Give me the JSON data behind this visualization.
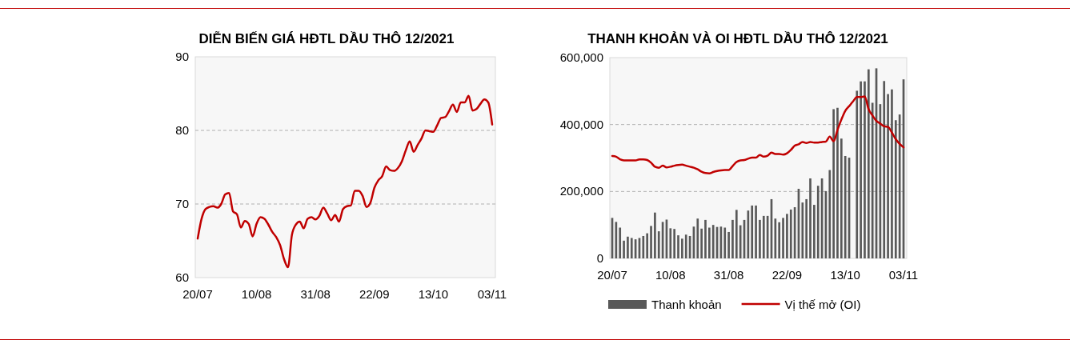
{
  "chart_data": [
    {
      "type": "line",
      "title": "DIỄN BIẾN GIÁ HĐTL DẦU THÔ 12/2021",
      "categories": [
        "20/07",
        null,
        null,
        null,
        null,
        null,
        null,
        null,
        null,
        null,
        null,
        null,
        null,
        null,
        null,
        "10/08",
        null,
        null,
        null,
        null,
        null,
        null,
        null,
        null,
        null,
        null,
        null,
        null,
        null,
        null,
        "31/08",
        null,
        null,
        null,
        null,
        null,
        null,
        null,
        null,
        null,
        null,
        null,
        null,
        null,
        null,
        "22/09",
        null,
        null,
        null,
        null,
        null,
        null,
        null,
        null,
        null,
        null,
        null,
        null,
        null,
        null,
        "13/10",
        null,
        null,
        null,
        null,
        null,
        null,
        null,
        null,
        null,
        null,
        null,
        null,
        null,
        null,
        "03/11"
      ],
      "series": [
        {
          "color": "#c00000",
          "values": [
            65.3,
            68.0,
            69.3,
            69.6,
            69.7,
            69.5,
            70.0,
            71.3,
            71.5,
            69.0,
            68.6,
            66.8,
            67.7,
            67.3,
            65.6,
            67.3,
            68.2,
            68.0,
            67.2,
            66.2,
            65.5,
            64.4,
            62.5,
            61.4,
            65.8,
            67.2,
            67.6,
            66.7,
            68.0,
            68.2,
            67.9,
            68.4,
            69.5,
            68.7,
            67.8,
            68.5,
            67.6,
            69.3,
            69.7,
            69.8,
            71.8,
            71.8,
            71.1,
            69.6,
            70.2,
            72.2,
            73.2,
            73.8,
            75.1,
            74.6,
            74.5,
            74.9,
            75.8,
            77.3,
            78.5,
            77.1,
            78.0,
            78.9,
            80.0,
            79.9,
            79.8,
            80.7,
            81.7,
            81.8,
            82.6,
            83.5,
            82.5,
            83.8,
            83.8,
            84.7,
            82.7,
            82.9,
            83.6,
            84.2,
            83.8,
            80.8
          ]
        }
      ],
      "ylim": [
        60,
        90
      ],
      "yticks": [
        60,
        70,
        80,
        90
      ],
      "grid": "y",
      "legend": false
    },
    {
      "type": "bar",
      "title": "THANH KHOẢN VÀ OI HĐTL DẦU THÔ 12/2021",
      "categories": [
        "20/07",
        null,
        null,
        null,
        null,
        null,
        null,
        null,
        null,
        null,
        null,
        null,
        null,
        null,
        null,
        "10/08",
        null,
        null,
        null,
        null,
        null,
        null,
        null,
        null,
        null,
        null,
        null,
        null,
        null,
        null,
        "31/08",
        null,
        null,
        null,
        null,
        null,
        null,
        null,
        null,
        null,
        null,
        null,
        null,
        null,
        null,
        "22/09",
        null,
        null,
        null,
        null,
        null,
        null,
        null,
        null,
        null,
        null,
        null,
        null,
        null,
        null,
        "13/10",
        null,
        null,
        null,
        null,
        null,
        null,
        null,
        null,
        null,
        null,
        null,
        null,
        null,
        null,
        "03/11"
      ],
      "series": [
        {
          "name": "Thanh khoản",
          "color": "#595959",
          "values": [
            121000,
            109000,
            92000,
            53000,
            65000,
            61000,
            57000,
            61000,
            67000,
            75000,
            97000,
            137000,
            81000,
            109000,
            116000,
            90000,
            88000,
            69000,
            59000,
            71000,
            67000,
            95000,
            119000,
            89000,
            115000,
            92000,
            100000,
            94000,
            95000,
            92000,
            79000,
            115000,
            145000,
            99000,
            115000,
            143000,
            158000,
            158000,
            115000,
            127000,
            127000,
            177000,
            119000,
            108000,
            121000,
            133000,
            146000,
            153000,
            208000,
            167000,
            177000,
            239000,
            160000,
            217000,
            239000,
            201000,
            264000,
            446000,
            450000,
            358000,
            306000,
            301000,
            null,
            501000,
            529000,
            529000,
            565000,
            465000,
            568000,
            461000,
            530000,
            491000,
            505000,
            413000,
            430000,
            535000
          ]
        },
        {
          "name": "Vị thế mở (OI)",
          "type": "line",
          "color": "#c00000",
          "values": [
            306000,
            304000,
            296000,
            293000,
            293000,
            293000,
            293000,
            296000,
            296000,
            294000,
            286000,
            274000,
            271000,
            277000,
            272000,
            274000,
            277000,
            279000,
            280000,
            277000,
            274000,
            271000,
            266000,
            259000,
            255000,
            254000,
            258000,
            261000,
            263000,
            264000,
            264000,
            276000,
            288000,
            293000,
            294000,
            298000,
            301000,
            301000,
            309000,
            304000,
            307000,
            316000,
            312000,
            312000,
            310000,
            314000,
            324000,
            337000,
            341000,
            348000,
            345000,
            348000,
            346000,
            346000,
            348000,
            349000,
            364000,
            350000,
            384000,
            415000,
            441000,
            455000,
            469000,
            482000,
            482000,
            484000,
            446000,
            427000,
            411000,
            403000,
            395000,
            393000,
            376000,
            356000,
            342000,
            332000
          ]
        }
      ],
      "ylim": [
        0,
        600000
      ],
      "yticks": [
        0,
        {
          "value": 200000,
          "label": "200,000"
        },
        {
          "value": 400000,
          "label": "400,000"
        },
        {
          "value": 600000,
          "label": "600,000"
        }
      ],
      "grid": "y",
      "legend": "bottom"
    }
  ]
}
